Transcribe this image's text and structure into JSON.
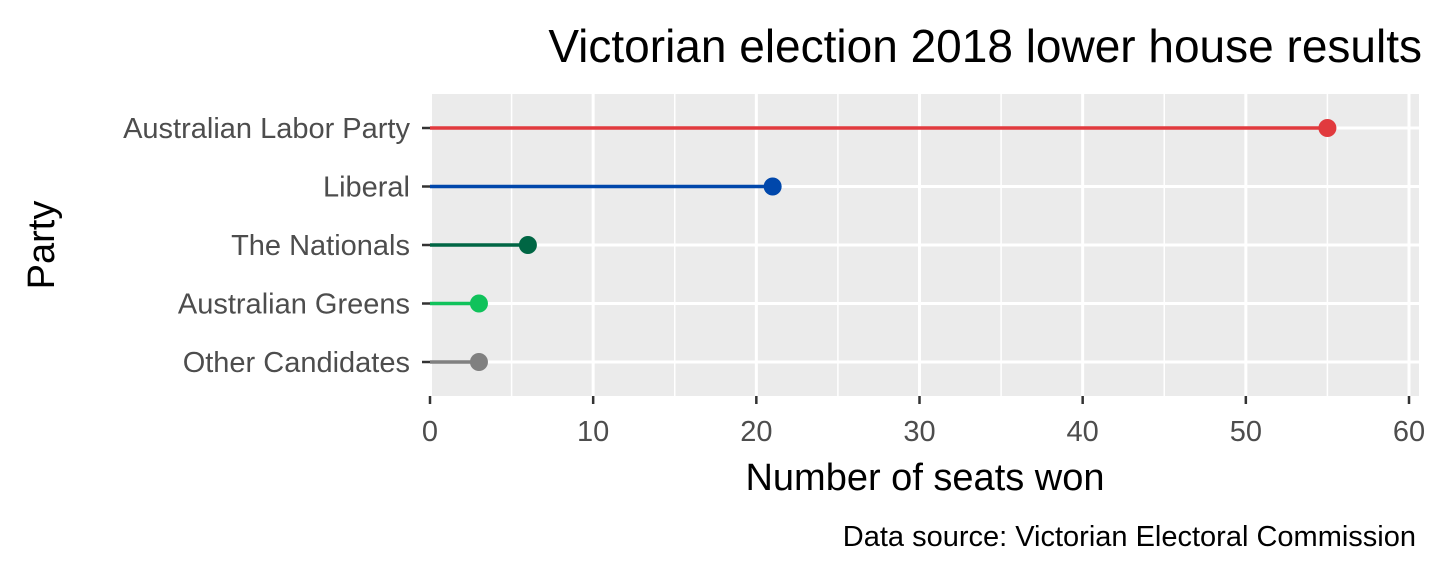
{
  "chart_data": {
    "type": "lollipop",
    "title": "Victorian election 2018 lower house results",
    "xlabel": "Number of seats won",
    "ylabel": "Party",
    "caption": "Data source: Victorian Electoral Commission",
    "categories": [
      "Australian Labor Party",
      "Liberal",
      "The Nationals",
      "Australian Greens",
      "Other Candidates"
    ],
    "values": [
      55,
      21,
      6,
      3,
      3
    ],
    "colors": [
      "#e13a3e",
      "#0047ab",
      "#006644",
      "#10c25b",
      "#808080"
    ],
    "xlim": [
      0,
      60
    ],
    "xticks": [
      0,
      10,
      20,
      30,
      40,
      50,
      60
    ],
    "grid": true,
    "panel_background": "#ebebeb",
    "legend": "none"
  }
}
